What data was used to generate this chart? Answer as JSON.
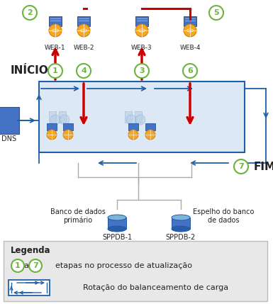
{
  "bg_color": "#ffffff",
  "legend_bg": "#e8e8e8",
  "green_circle_color": "#6db33f",
  "blue_arrow_color": "#1f5fa6",
  "red_arrow_color": "#cc0000",
  "blue_box_color": "#1f5fa6",
  "inicio_text": "INÍCIO",
  "fim_text": "FIM",
  "dns_text": "DNS",
  "web_labels": [
    "WEB-1",
    "WEB-2",
    "WEB-3",
    "WEB-4"
  ],
  "db_labels": [
    "SPPDB-1",
    "SPPDB-2"
  ],
  "db_text1": "Banco de dados\nprimário",
  "db_text2": "Espelho do banco\nde dados",
  "legend_title": "Legenda",
  "legend_text1": "etapas no processo de atualização",
  "legend_text2": "Rotação do balanceamento de carga",
  "figsize": [
    3.85,
    4.29
  ],
  "dpi": 100
}
